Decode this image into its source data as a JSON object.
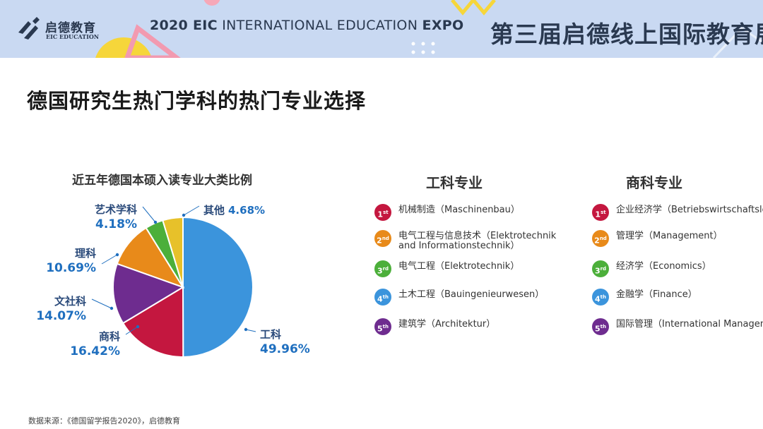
{
  "header": {
    "logo_cn": "启德教育",
    "logo_en": "EIC EDUCATION",
    "expo_bold_year": "2020 EIC",
    "expo_middle": " INTERNATIONAL EDUCATION ",
    "expo_bold_end": "EXPO",
    "expo_cn": "第三届启德线上国际教育展"
  },
  "page_title": "德国研究生热门学科的热门专业选择",
  "chart_data": {
    "type": "pie",
    "title": "近五年德国本硕入读专业大类比例",
    "categories": [
      "工科",
      "商科",
      "文社科",
      "理科",
      "艺术学科",
      "其他"
    ],
    "values": [
      49.96,
      16.42,
      14.07,
      10.69,
      4.18,
      4.68
    ],
    "value_labels": [
      "49.96%",
      "16.42%",
      "14.07%",
      "10.69%",
      "4.18%",
      "4.68%"
    ],
    "colors": [
      "#3b94dc",
      "#c4173f",
      "#6e2c8f",
      "#e88a1a",
      "#4caf3a",
      "#e7c12a"
    ],
    "start_angle": "12 o'clock",
    "direction": "clockwise"
  },
  "columns": [
    {
      "title": "工科专业",
      "items": [
        {
          "rank": "1",
          "suffix": "st",
          "color": "#c4173f",
          "text": "机械制造（Maschinenbau）"
        },
        {
          "rank": "2",
          "suffix": "nd",
          "color": "#e88a1a",
          "text": "电气工程与信息技术（Elektrotechnik and Informationstechnik）"
        },
        {
          "rank": "3",
          "suffix": "rd",
          "color": "#4caf3a",
          "text": "电气工程（Elektrotechnik）"
        },
        {
          "rank": "4",
          "suffix": "th",
          "color": "#3b94dc",
          "text": "土木工程（Bauingenieurwesen）"
        },
        {
          "rank": "5",
          "suffix": "th",
          "color": "#6e2c8f",
          "text": "建筑学（Architektur）"
        }
      ]
    },
    {
      "title": "商科专业",
      "items": [
        {
          "rank": "1",
          "suffix": "st",
          "color": "#c4173f",
          "text": "企业经济学（Betriebswirtschaftslehre）"
        },
        {
          "rank": "2",
          "suffix": "nd",
          "color": "#e88a1a",
          "text": "管理学（Management）"
        },
        {
          "rank": "3",
          "suffix": "rd",
          "color": "#4caf3a",
          "text": "经济学（Economics）"
        },
        {
          "rank": "4",
          "suffix": "th",
          "color": "#3b94dc",
          "text": "金融学（Finance）"
        },
        {
          "rank": "5",
          "suffix": "th",
          "color": "#6e2c8f",
          "text": "国际管理（International Management）"
        }
      ]
    }
  ],
  "source": "数据来源：《德国留学报告2020》，启德教育"
}
